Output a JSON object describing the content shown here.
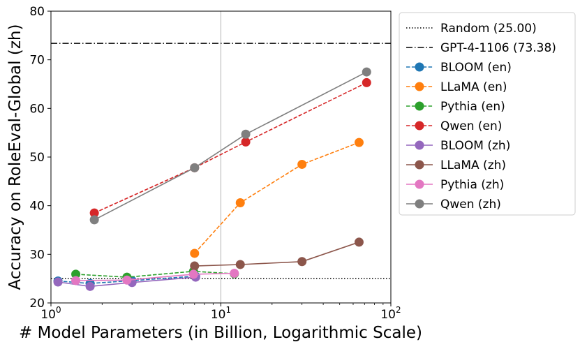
{
  "chart_data": {
    "type": "line",
    "title": "",
    "xlabel": "# Model Parameters (in Billion, Logarithmic Scale)",
    "ylabel": "Accuracy on RoleEval-Global (zh)",
    "xscale": "log",
    "xlim": [
      1,
      100
    ],
    "ylim": [
      20,
      80
    ],
    "yticks": [
      20,
      30,
      40,
      50,
      60,
      70,
      80
    ],
    "xticks": [
      {
        "value": 1,
        "base": "10",
        "exp": "0"
      },
      {
        "value": 10,
        "base": "10",
        "exp": "1"
      },
      {
        "value": 100,
        "base": "10",
        "exp": "2"
      }
    ],
    "grid": "vertical at 10",
    "legend_position": "outside-right",
    "reference_lines": [
      {
        "name": "Random (25.00)",
        "value": 25.0,
        "style": "dotted",
        "color": "#000000"
      },
      {
        "name": "GPT-4-1106 (73.38)",
        "value": 73.38,
        "style": "dashdot",
        "color": "#000000"
      }
    ],
    "series": [
      {
        "name": "BLOOM (en)",
        "color": "#1f77b4",
        "dash": true,
        "x": [
          1.1,
          1.7,
          3,
          7.1
        ],
        "y": [
          24.5,
          24.0,
          24.6,
          25.5
        ]
      },
      {
        "name": "LLaMA (en)",
        "color": "#ff7f0e",
        "dash": true,
        "x": [
          7,
          13,
          30,
          65
        ],
        "y": [
          30.2,
          40.6,
          48.5,
          53.0
        ]
      },
      {
        "name": "Pythia (en)",
        "color": "#2ca02c",
        "dash": true,
        "x": [
          1.4,
          2.8,
          6.9,
          12
        ],
        "y": [
          25.9,
          25.3,
          26.5,
          26.0
        ]
      },
      {
        "name": "Qwen (en)",
        "color": "#d62728",
        "dash": true,
        "x": [
          1.8,
          7,
          14,
          72
        ],
        "y": [
          38.5,
          47.8,
          53.1,
          65.3
        ]
      },
      {
        "name": "BLOOM (zh)",
        "color": "#9467bd",
        "dash": false,
        "x": [
          1.1,
          1.7,
          3,
          7.1
        ],
        "y": [
          24.3,
          23.4,
          24.2,
          25.3
        ]
      },
      {
        "name": "LLaMA (zh)",
        "color": "#8c564b",
        "dash": false,
        "x": [
          7,
          13,
          30,
          65
        ],
        "y": [
          27.6,
          27.9,
          28.5,
          32.5
        ]
      },
      {
        "name": "Pythia (zh)",
        "color": "#e377c2",
        "dash": false,
        "x": [
          1.4,
          2.8,
          6.9,
          12
        ],
        "y": [
          24.6,
          24.7,
          25.9,
          26.1
        ]
      },
      {
        "name": "Qwen (zh)",
        "color": "#7f7f7f",
        "dash": false,
        "x": [
          1.8,
          7,
          14,
          72
        ],
        "y": [
          37.1,
          47.8,
          54.7,
          67.5
        ]
      }
    ]
  }
}
